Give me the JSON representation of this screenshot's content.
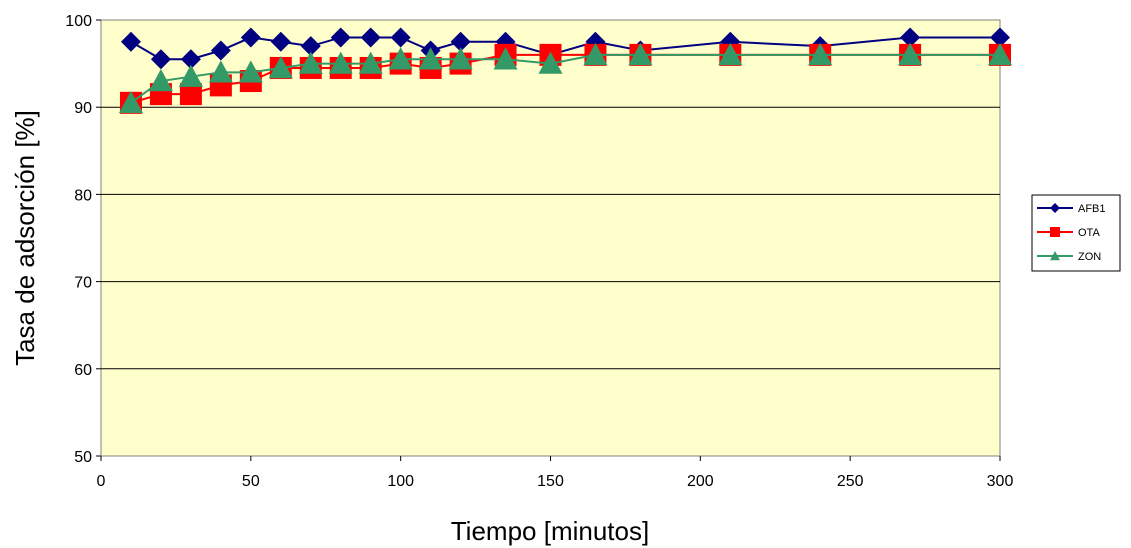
{
  "chart_data": {
    "type": "line",
    "title": "",
    "xlabel": "Tiempo [minutos]",
    "ylabel": "Tasa de adsorción [%]",
    "xlim": [
      0,
      300
    ],
    "ylim": [
      50,
      100
    ],
    "xticks": [
      0,
      50,
      100,
      150,
      200,
      250,
      300
    ],
    "yticks": [
      50,
      60,
      70,
      80,
      90,
      100
    ],
    "grid": "horizontal",
    "legend_position": "right",
    "plot_background": "#FFFFCC",
    "series": [
      {
        "name": "AFB1",
        "color": "#000080",
        "marker": "diamond",
        "x": [
          10,
          20,
          30,
          40,
          50,
          60,
          70,
          80,
          90,
          100,
          110,
          120,
          135,
          150,
          165,
          180,
          210,
          240,
          270,
          300
        ],
        "y": [
          97.5,
          95.5,
          95.5,
          96.5,
          98,
          97.5,
          97,
          98,
          98,
          98,
          96.5,
          97.5,
          97.5,
          96,
          97.5,
          96.5,
          97.5,
          97,
          98,
          98
        ]
      },
      {
        "name": "OTA",
        "color": "#FF0000",
        "marker": "square",
        "x": [
          10,
          20,
          30,
          40,
          50,
          60,
          70,
          80,
          90,
          100,
          110,
          120,
          135,
          150,
          165,
          180,
          210,
          240,
          270,
          300
        ],
        "y": [
          90.5,
          91.5,
          91.5,
          92.5,
          93,
          94.5,
          94.5,
          94.5,
          94.5,
          95,
          94.5,
          95,
          96,
          96,
          96,
          96,
          96,
          96,
          96,
          96
        ]
      },
      {
        "name": "ZON",
        "color": "#339966",
        "marker": "triangle",
        "x": [
          10,
          20,
          30,
          40,
          50,
          60,
          70,
          80,
          90,
          100,
          110,
          120,
          135,
          150,
          165,
          180,
          210,
          240,
          270,
          300
        ],
        "y": [
          90.5,
          93,
          93.5,
          94,
          94,
          94.5,
          95,
          95,
          95,
          95.5,
          95.5,
          95.5,
          95.5,
          95,
          96,
          96,
          96,
          96,
          96,
          96
        ]
      }
    ]
  }
}
